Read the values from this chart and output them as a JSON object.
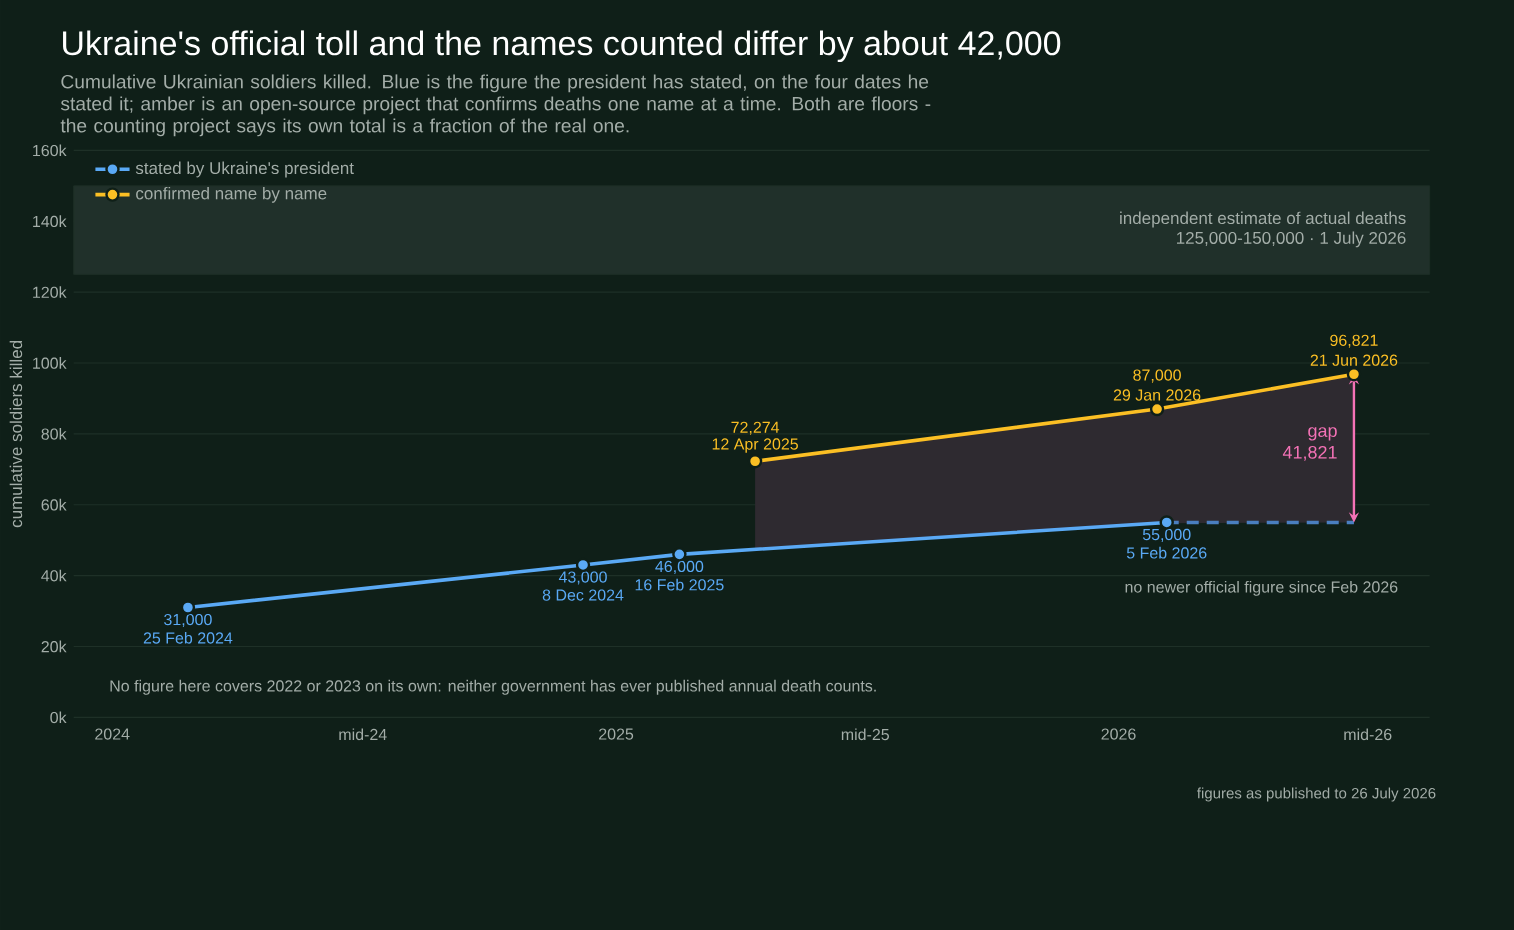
{
  "chart_data": {
    "type": "line",
    "title": "Ukraine's official toll and the names counted differ by about 42,000",
    "subtitle": "Cumulative Ukrainian soldiers killed. Blue is the figure the president has stated, on the four dates he stated it; amber is an open-source project that confirms deaths one name at a time. Both are floors - the counting project says its own total is a fraction of the real one.",
    "ylabel": "cumulative soldiers killed",
    "series": [
      {
        "name": "stated by Ukraine's president",
        "color": "#5aa9f5",
        "x": [
          "2024-02-25",
          "2024-12-08",
          "2025-02-16",
          "2026-02-05"
        ],
        "values": [
          31000,
          43000,
          46000,
          55000
        ],
        "value_labels": [
          "31,000",
          "43,000",
          "46,000",
          "55,000"
        ]
      },
      {
        "color": "#4a7fc0",
        "x": [
          "2026-02-05",
          "2026-06-21"
        ],
        "values": [
          55000,
          55000
        ],
        "line_style": "dashed",
        "marker": "none"
      },
      {
        "name": "confirmed name by name",
        "color": "#fbbf24",
        "x": [
          "2025-04-12",
          "2026-01-29",
          "2026-06-21"
        ],
        "values": [
          72274,
          87000,
          96821
        ],
        "lower": [
          47400,
          54800,
          55000
        ],
        "upper": [
          72274,
          87000,
          96821
        ],
        "value_labels": [
          "72,274",
          "87,000",
          "96,821"
        ]
      }
    ],
    "xlim": [
      "2023-12-04",
      "2026-08-15"
    ],
    "xticks": [
      {
        "value": "2024-01-01",
        "label": "2024"
      },
      {
        "value": "2024-07-01",
        "label": "mid-24"
      },
      {
        "value": "2025-01-01",
        "label": "2025"
      },
      {
        "value": "2025-07-01",
        "label": "mid-25"
      },
      {
        "value": "2026-01-01",
        "label": "2026"
      },
      {
        "value": "2026-07-01",
        "label": "mid-26"
      }
    ],
    "ylim": [
      0,
      160000
    ],
    "yticks": [
      {
        "value": 0,
        "label": "0k"
      },
      {
        "value": 20000,
        "label": "20k"
      },
      {
        "value": 40000,
        "label": "40k"
      },
      {
        "value": 60000,
        "label": "60k"
      },
      {
        "value": 80000,
        "label": "80k"
      },
      {
        "value": 100000,
        "label": "100k"
      },
      {
        "value": 120000,
        "label": "120k"
      },
      {
        "value": 140000,
        "label": "140k"
      },
      {
        "value": 160000,
        "label": "160k"
      }
    ],
    "bands": [
      {
        "axis": "y",
        "from": 125000,
        "to": 150000,
        "label": "independent estimate of actual deaths",
        "color": "#20302a"
      }
    ],
    "annotations": [
      "no newer official figure since Feb 2026",
      "No figure here covers 2022 or 2023 on its own: neither government has ever published annual death counts.",
      "125,000-150,000  ·  1 July 2026",
      "figures as published to 26 July 2026",
      {
        "text": "25 Feb 2024",
        "x": "2024-02-25",
        "y": 31000
      },
      {
        "text": "8 Dec 2024",
        "x": "2024-12-08",
        "y": 43000
      },
      {
        "text": "16 Feb 2025",
        "x": "2025-02-16",
        "y": 46000
      },
      {
        "text": "5 Feb 2026",
        "x": "2026-02-05",
        "y": 55000
      },
      {
        "text": "12 Apr 2025",
        "x": "2025-04-12",
        "y": 72274
      },
      {
        "text": "29 Jan 2026",
        "x": "2026-01-29",
        "y": 87000
      },
      {
        "text": "21 Jun 2026",
        "x": "2026-06-21",
        "y": 96821
      },
      {
        "text": "gap",
        "x": "2026-06-21",
        "y": 80000
      },
      {
        "text": "41,821",
        "x": "2026-06-21",
        "y": 74500
      }
    ],
    "grid": "y",
    "legend": "top left",
    "marker": "circle",
    "line_style": "solid"
  }
}
